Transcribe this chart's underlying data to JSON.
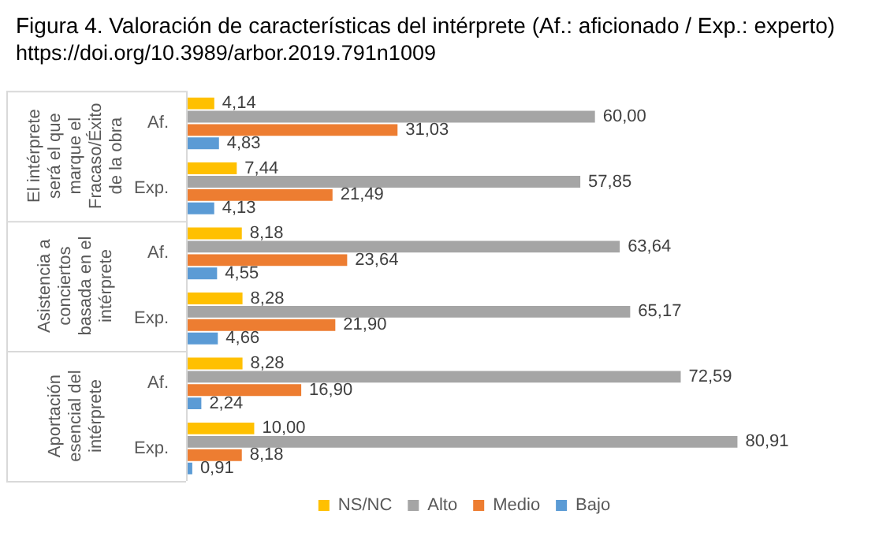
{
  "chart_data": {
    "type": "bar",
    "orientation": "horizontal",
    "title": "Figura 4. Valoración de características del intérprete (Af.: aficionado / Exp.: experto)",
    "subtitle": "https://doi.org/10.3989/arbor.2019.791n1009",
    "categories": [
      "Af.",
      "Exp.",
      "Af.",
      "Exp.",
      "Af.",
      "Exp."
    ],
    "annotations": [
      "El intérprete será el que marque el Fracaso/Éxito de la obra",
      "Asistencia a conciertos basada en el intérprete",
      "Aportación esencial del intérprete"
    ],
    "tick_labels": "y",
    "legend": "bottom",
    "series": [
      {
        "name": "NS/NC",
        "color": "#ffc000",
        "values": [
          4.14,
          7.44,
          8.18,
          8.28,
          8.28,
          10.0
        ],
        "value_labels": [
          "4,14",
          "7,44",
          "8,18",
          "8,28",
          "8,28",
          "10,00"
        ]
      },
      {
        "name": "Alto",
        "color": "#a5a5a5",
        "values": [
          60.0,
          57.85,
          63.64,
          65.17,
          72.59,
          80.91
        ],
        "value_labels": [
          "60,00",
          "57,85",
          "63,64",
          "65,17",
          "72,59",
          "80,91"
        ]
      },
      {
        "name": "Medio",
        "color": "#ed7d31",
        "values": [
          31.03,
          21.49,
          23.64,
          21.9,
          16.9,
          8.18
        ],
        "value_labels": [
          "31,03",
          "21,49",
          "23,64",
          "21,90",
          "16,90",
          "8,18"
        ]
      },
      {
        "name": "Bajo",
        "color": "#5b9bd5",
        "values": [
          4.83,
          4.13,
          4.55,
          4.66,
          2.24,
          0.91
        ],
        "value_labels": [
          "4,83",
          "4,13",
          "4,55",
          "4,66",
          "2,24",
          "0,91"
        ]
      }
    ]
  }
}
